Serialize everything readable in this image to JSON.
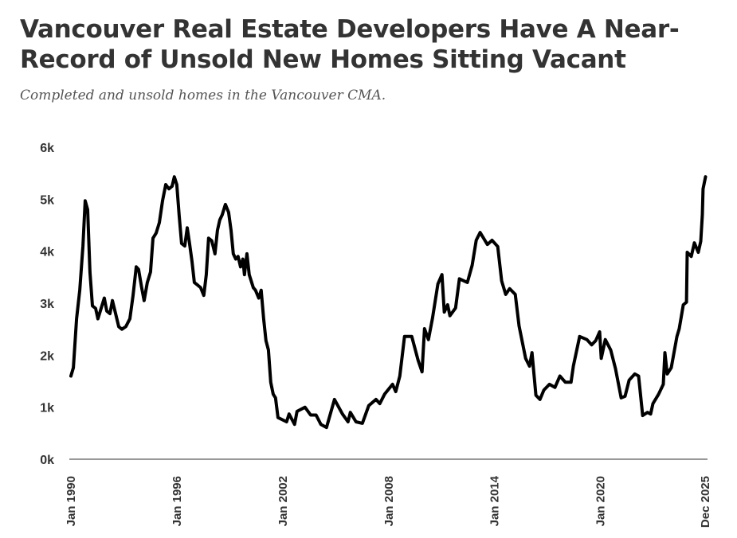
{
  "chart_data": {
    "type": "line",
    "title": "Vancouver Real Estate Developers Have A Near-Record of Unsold New Homes Sitting Vacant",
    "subtitle": "Completed and unsold homes in the Vancouver CMA.",
    "xlabel": "",
    "ylabel": "",
    "ylim": [
      0,
      6
    ],
    "xlim": [
      1990.0,
      2025.95
    ],
    "grid": false,
    "y_ticks": [
      {
        "v": 0,
        "label": "0k"
      },
      {
        "v": 1,
        "label": "1k"
      },
      {
        "v": 2,
        "label": "2k"
      },
      {
        "v": 3,
        "label": "3k"
      },
      {
        "v": 4,
        "label": "4k"
      },
      {
        "v": 5,
        "label": "5k"
      },
      {
        "v": 6,
        "label": "6k"
      }
    ],
    "x_ticks": [
      {
        "v": 1990.0,
        "label": "Jan 1990"
      },
      {
        "v": 1996.0,
        "label": "Jan 1996"
      },
      {
        "v": 2002.0,
        "label": "Jan 2002"
      },
      {
        "v": 2008.0,
        "label": "Jan 2008"
      },
      {
        "v": 2014.0,
        "label": "Jan 2014"
      },
      {
        "v": 2020.0,
        "label": "Jan 2020"
      },
      {
        "v": 2025.92,
        "label": "Dec 2025"
      }
    ],
    "series": [
      {
        "name": "Completed and unsold homes (thousands)",
        "color": "#000000",
        "points": [
          [
            1990.0,
            1.6
          ],
          [
            1990.14,
            1.76
          ],
          [
            1990.32,
            2.7
          ],
          [
            1990.5,
            3.25
          ],
          [
            1990.68,
            4.1
          ],
          [
            1990.81,
            4.97
          ],
          [
            1990.95,
            4.8
          ],
          [
            1991.08,
            3.6
          ],
          [
            1991.22,
            2.95
          ],
          [
            1991.4,
            2.9
          ],
          [
            1991.53,
            2.7
          ],
          [
            1991.71,
            2.9
          ],
          [
            1991.89,
            3.1
          ],
          [
            1992.03,
            2.85
          ],
          [
            1992.21,
            2.8
          ],
          [
            1992.35,
            3.05
          ],
          [
            1992.53,
            2.8
          ],
          [
            1992.71,
            2.55
          ],
          [
            1992.89,
            2.5
          ],
          [
            1993.11,
            2.55
          ],
          [
            1993.34,
            2.7
          ],
          [
            1993.52,
            3.15
          ],
          [
            1993.7,
            3.7
          ],
          [
            1993.83,
            3.65
          ],
          [
            1994.01,
            3.3
          ],
          [
            1994.15,
            3.05
          ],
          [
            1994.33,
            3.4
          ],
          [
            1994.51,
            3.6
          ],
          [
            1994.65,
            4.25
          ],
          [
            1994.83,
            4.35
          ],
          [
            1995.01,
            4.55
          ],
          [
            1995.19,
            4.97
          ],
          [
            1995.37,
            5.28
          ],
          [
            1995.55,
            5.2
          ],
          [
            1995.73,
            5.25
          ],
          [
            1995.86,
            5.43
          ],
          [
            1996.0,
            5.28
          ],
          [
            1996.13,
            4.7
          ],
          [
            1996.27,
            4.15
          ],
          [
            1996.45,
            4.1
          ],
          [
            1996.59,
            4.45
          ],
          [
            1996.72,
            4.15
          ],
          [
            1996.86,
            3.8
          ],
          [
            1996.99,
            3.4
          ],
          [
            1997.17,
            3.35
          ],
          [
            1997.35,
            3.3
          ],
          [
            1997.53,
            3.15
          ],
          [
            1997.67,
            3.55
          ],
          [
            1997.8,
            4.25
          ],
          [
            1997.98,
            4.2
          ],
          [
            1998.16,
            3.95
          ],
          [
            1998.3,
            4.4
          ],
          [
            1998.43,
            4.6
          ],
          [
            1998.57,
            4.7
          ],
          [
            1998.75,
            4.9
          ],
          [
            1998.93,
            4.75
          ],
          [
            1999.07,
            4.4
          ],
          [
            1999.2,
            3.95
          ],
          [
            1999.34,
            3.85
          ],
          [
            1999.47,
            3.9
          ],
          [
            1999.61,
            3.7
          ],
          [
            1999.74,
            3.85
          ],
          [
            1999.83,
            3.55
          ],
          [
            1999.97,
            3.95
          ],
          [
            2000.1,
            3.55
          ],
          [
            2000.33,
            3.3
          ],
          [
            2000.46,
            3.25
          ],
          [
            2000.64,
            3.1
          ],
          [
            2000.78,
            3.25
          ],
          [
            2000.92,
            2.7
          ],
          [
            2001.05,
            2.28
          ],
          [
            2001.19,
            2.1
          ],
          [
            2001.32,
            1.48
          ],
          [
            2001.46,
            1.25
          ],
          [
            2001.59,
            1.18
          ],
          [
            2001.73,
            0.8
          ],
          [
            2002.22,
            0.72
          ],
          [
            2002.36,
            0.87
          ],
          [
            2002.67,
            0.67
          ],
          [
            2002.81,
            0.92
          ],
          [
            2003.26,
            1.0
          ],
          [
            2003.58,
            0.85
          ],
          [
            2003.89,
            0.85
          ],
          [
            2004.16,
            0.67
          ],
          [
            2004.48,
            0.61
          ],
          [
            2004.93,
            1.15
          ],
          [
            2005.38,
            0.87
          ],
          [
            2005.7,
            0.72
          ],
          [
            2005.83,
            0.9
          ],
          [
            2006.15,
            0.72
          ],
          [
            2006.51,
            0.69
          ],
          [
            2006.87,
            1.03
          ],
          [
            2007.28,
            1.15
          ],
          [
            2007.5,
            1.07
          ],
          [
            2007.77,
            1.25
          ],
          [
            2008.22,
            1.44
          ],
          [
            2008.4,
            1.3
          ],
          [
            2008.63,
            1.6
          ],
          [
            2008.9,
            2.36
          ],
          [
            2009.31,
            2.36
          ],
          [
            2009.67,
            1.9
          ],
          [
            2009.89,
            1.68
          ],
          [
            2010.03,
            2.51
          ],
          [
            2010.25,
            2.3
          ],
          [
            2010.48,
            2.71
          ],
          [
            2010.79,
            3.37
          ],
          [
            2011.02,
            3.55
          ],
          [
            2011.15,
            2.83
          ],
          [
            2011.34,
            2.97
          ],
          [
            2011.47,
            2.76
          ],
          [
            2011.79,
            2.91
          ],
          [
            2012.01,
            3.47
          ],
          [
            2012.46,
            3.4
          ],
          [
            2012.73,
            3.73
          ],
          [
            2012.96,
            4.21
          ],
          [
            2013.18,
            4.36
          ],
          [
            2013.59,
            4.13
          ],
          [
            2013.86,
            4.21
          ],
          [
            2014.18,
            4.09
          ],
          [
            2014.4,
            3.43
          ],
          [
            2014.63,
            3.17
          ],
          [
            2014.85,
            3.28
          ],
          [
            2015.17,
            3.17
          ],
          [
            2015.39,
            2.56
          ],
          [
            2015.76,
            1.94
          ],
          [
            2015.98,
            1.79
          ],
          [
            2016.12,
            2.05
          ],
          [
            2016.34,
            1.23
          ],
          [
            2016.57,
            1.15
          ],
          [
            2016.79,
            1.33
          ],
          [
            2017.11,
            1.44
          ],
          [
            2017.42,
            1.38
          ],
          [
            2017.7,
            1.6
          ],
          [
            2018.01,
            1.48
          ],
          [
            2018.33,
            1.48
          ],
          [
            2018.46,
            1.79
          ],
          [
            2018.82,
            2.36
          ],
          [
            2019.23,
            2.3
          ],
          [
            2019.5,
            2.2
          ],
          [
            2019.73,
            2.28
          ],
          [
            2019.95,
            2.45
          ],
          [
            2020.04,
            1.94
          ],
          [
            2020.27,
            2.3
          ],
          [
            2020.58,
            2.1
          ],
          [
            2020.85,
            1.74
          ],
          [
            2021.17,
            1.18
          ],
          [
            2021.39,
            1.21
          ],
          [
            2021.62,
            1.52
          ],
          [
            2021.94,
            1.64
          ],
          [
            2022.16,
            1.6
          ],
          [
            2022.39,
            0.84
          ],
          [
            2022.66,
            0.9
          ],
          [
            2022.84,
            0.87
          ],
          [
            2022.97,
            1.07
          ],
          [
            2023.29,
            1.25
          ],
          [
            2023.56,
            1.44
          ],
          [
            2023.65,
            2.05
          ],
          [
            2023.78,
            1.64
          ],
          [
            2024.01,
            1.76
          ],
          [
            2024.33,
            2.36
          ],
          [
            2024.46,
            2.51
          ],
          [
            2024.69,
            2.97
          ],
          [
            2024.87,
            3.02
          ],
          [
            2024.91,
            3.98
          ],
          [
            2025.14,
            3.9
          ],
          [
            2025.32,
            4.16
          ],
          [
            2025.54,
            3.98
          ],
          [
            2025.68,
            4.19
          ],
          [
            2025.77,
            4.7
          ],
          [
            2025.81,
            5.2
          ],
          [
            2025.95,
            5.43
          ]
        ]
      }
    ]
  }
}
